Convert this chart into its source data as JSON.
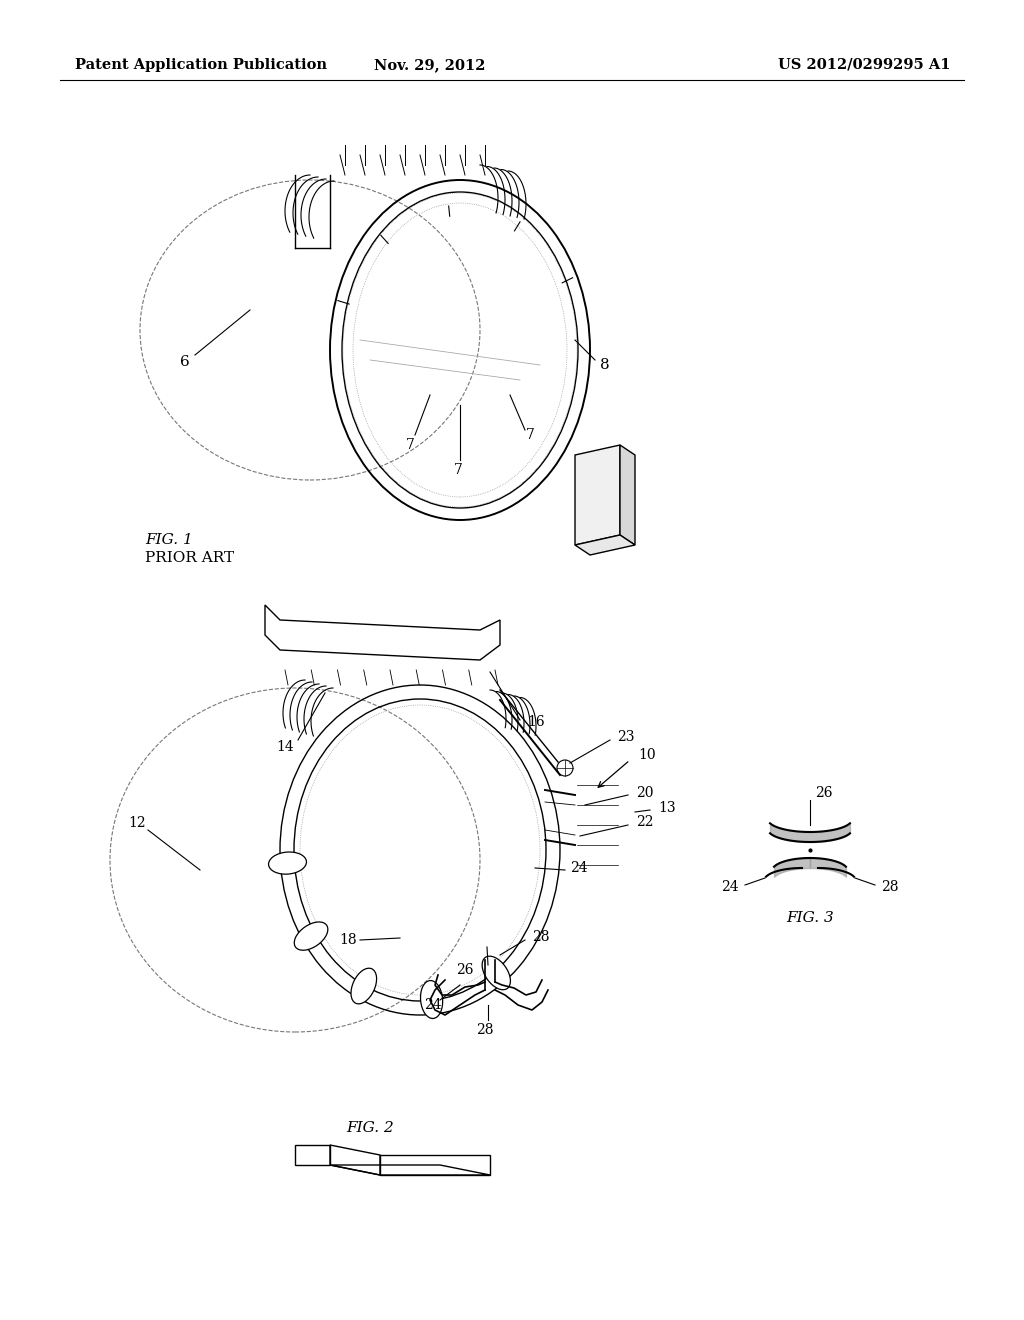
{
  "background_color": "#ffffff",
  "header_left": "Patent Application Publication",
  "header_center": "Nov. 29, 2012",
  "header_right": "US 2012/0299295 A1",
  "header_fontsize": 10.5,
  "fig1_label": "FIG. 1",
  "fig1_sublabel": "PRIOR ART",
  "fig2_label": "FIG. 2",
  "fig3_label": "FIG. 3"
}
